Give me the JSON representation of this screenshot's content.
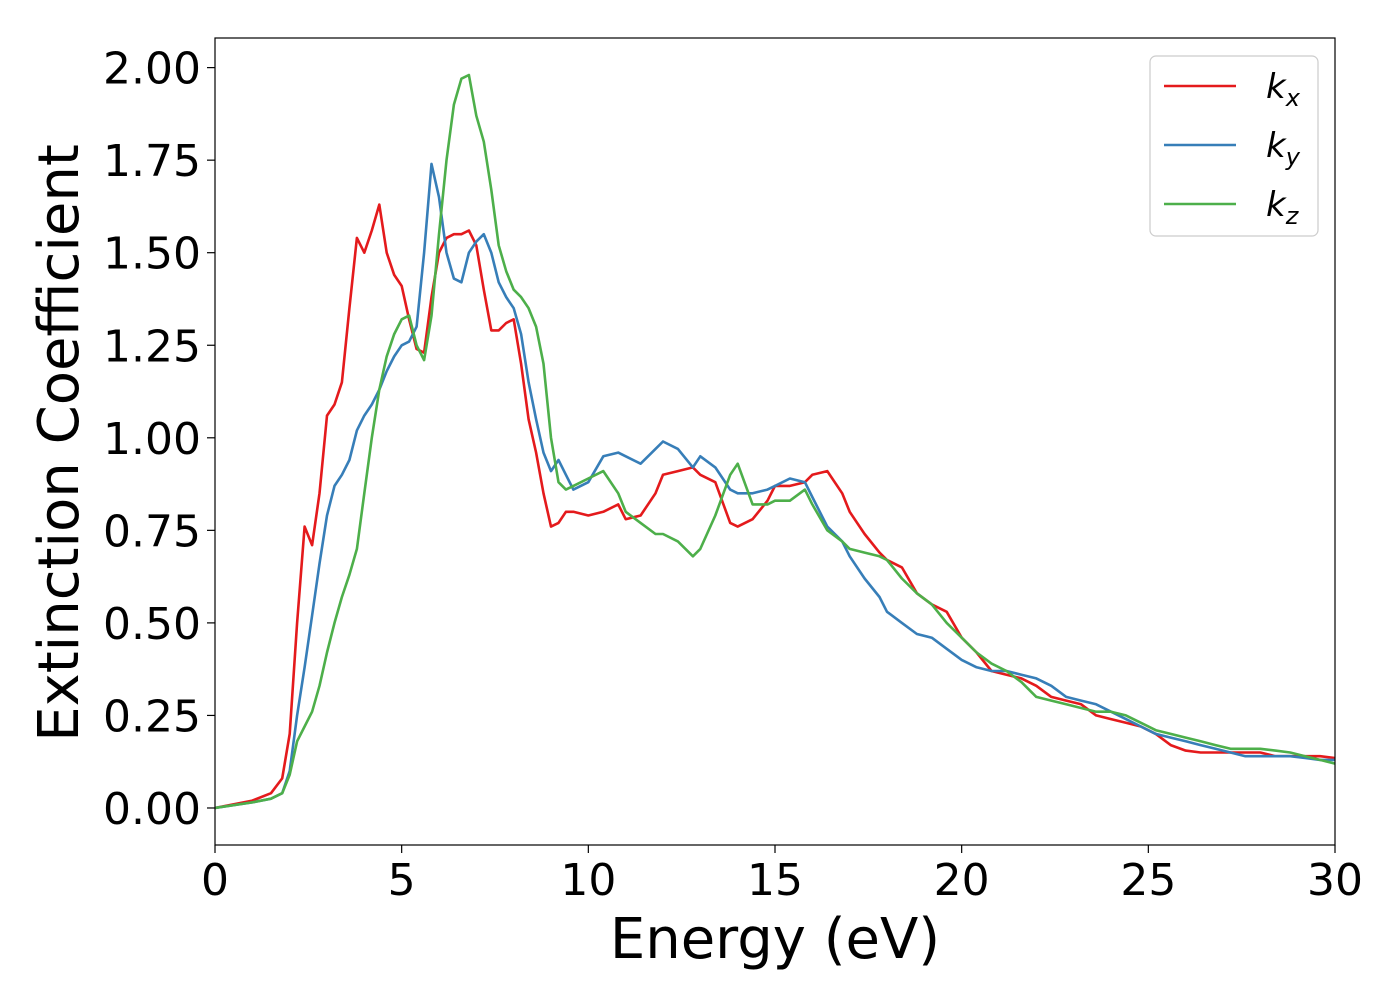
{
  "chart_data": {
    "type": "line",
    "title": "",
    "xlabel": "Energy (eV)",
    "ylabel": "Extinction Coefficient",
    "xlim": [
      0,
      30
    ],
    "ylim": [
      -0.1,
      2.08
    ],
    "xticks": [
      0,
      5,
      10,
      15,
      20,
      25,
      30
    ],
    "xtick_labels": [
      "0",
      "5",
      "10",
      "15",
      "20",
      "25",
      "30"
    ],
    "yticks": [
      0,
      0.25,
      0.5,
      0.75,
      1.0,
      1.25,
      1.5,
      1.75,
      2.0
    ],
    "ytick_labels": [
      "0.00",
      "0.25",
      "0.50",
      "0.75",
      "1.00",
      "1.25",
      "1.50",
      "1.75",
      "2.00"
    ],
    "grid": false,
    "legend_position": "top-right",
    "series": [
      {
        "name": "kx",
        "label_base": "k",
        "label_sub": "x",
        "color": "#e41a1c",
        "x": [
          0,
          1,
          1.5,
          1.8,
          2.0,
          2.2,
          2.4,
          2.6,
          2.8,
          3.0,
          3.2,
          3.4,
          3.6,
          3.8,
          4.0,
          4.2,
          4.4,
          4.6,
          4.8,
          5.0,
          5.2,
          5.4,
          5.6,
          5.8,
          6.0,
          6.2,
          6.4,
          6.6,
          6.8,
          7.0,
          7.2,
          7.4,
          7.6,
          7.8,
          8.0,
          8.2,
          8.4,
          8.6,
          8.8,
          9.0,
          9.2,
          9.4,
          9.6,
          10.0,
          10.4,
          10.8,
          11.0,
          11.4,
          11.8,
          12.0,
          12.4,
          12.8,
          13.0,
          13.4,
          13.8,
          14.0,
          14.4,
          14.8,
          15.0,
          15.4,
          15.8,
          16.0,
          16.4,
          16.8,
          17.0,
          17.4,
          17.8,
          18.0,
          18.4,
          18.8,
          19.2,
          19.6,
          20.0,
          20.4,
          20.8,
          21.2,
          21.6,
          22.0,
          22.4,
          22.8,
          23.2,
          23.6,
          24.0,
          24.4,
          24.8,
          25.2,
          25.6,
          26.0,
          26.4,
          26.8,
          27.2,
          27.6,
          28.0,
          28.4,
          28.8,
          29.2,
          29.6,
          30.0
        ],
        "y": [
          0,
          0.02,
          0.04,
          0.08,
          0.2,
          0.5,
          0.76,
          0.71,
          0.85,
          1.06,
          1.09,
          1.15,
          1.35,
          1.54,
          1.5,
          1.56,
          1.63,
          1.5,
          1.44,
          1.41,
          1.32,
          1.24,
          1.23,
          1.38,
          1.5,
          1.54,
          1.55,
          1.55,
          1.56,
          1.52,
          1.4,
          1.29,
          1.29,
          1.31,
          1.32,
          1.2,
          1.05,
          0.96,
          0.85,
          0.76,
          0.77,
          0.8,
          0.8,
          0.79,
          0.8,
          0.82,
          0.78,
          0.79,
          0.85,
          0.9,
          0.91,
          0.92,
          0.9,
          0.88,
          0.77,
          0.76,
          0.78,
          0.83,
          0.87,
          0.87,
          0.88,
          0.9,
          0.91,
          0.85,
          0.8,
          0.74,
          0.69,
          0.67,
          0.65,
          0.58,
          0.55,
          0.53,
          0.46,
          0.42,
          0.37,
          0.36,
          0.35,
          0.33,
          0.3,
          0.29,
          0.28,
          0.25,
          0.24,
          0.23,
          0.22,
          0.2,
          0.17,
          0.155,
          0.15,
          0.15,
          0.15,
          0.15,
          0.15,
          0.14,
          0.14,
          0.14,
          0.14,
          0.135
        ]
      },
      {
        "name": "ky",
        "label_base": "k",
        "label_sub": "y",
        "color": "#377eb8",
        "x": [
          0,
          1,
          1.5,
          1.8,
          2.0,
          2.2,
          2.4,
          2.6,
          2.8,
          3.0,
          3.2,
          3.4,
          3.6,
          3.8,
          4.0,
          4.2,
          4.4,
          4.6,
          4.8,
          5.0,
          5.2,
          5.4,
          5.6,
          5.8,
          6.0,
          6.2,
          6.4,
          6.6,
          6.8,
          7.0,
          7.2,
          7.4,
          7.6,
          7.8,
          8.0,
          8.2,
          8.4,
          8.6,
          8.8,
          9.0,
          9.2,
          9.4,
          9.6,
          10.0,
          10.4,
          10.8,
          11.0,
          11.4,
          11.8,
          12.0,
          12.4,
          12.8,
          13.0,
          13.4,
          13.8,
          14.0,
          14.4,
          14.8,
          15.0,
          15.4,
          15.8,
          16.0,
          16.4,
          16.8,
          17.0,
          17.4,
          17.8,
          18.0,
          18.4,
          18.8,
          19.2,
          19.6,
          20.0,
          20.4,
          20.8,
          21.2,
          21.6,
          22.0,
          22.4,
          22.8,
          23.2,
          23.6,
          24.0,
          24.4,
          24.8,
          25.2,
          25.6,
          26.0,
          26.4,
          26.8,
          27.2,
          27.6,
          28.0,
          28.4,
          28.8,
          29.2,
          29.6,
          30.0
        ],
        "y": [
          0,
          0.015,
          0.025,
          0.04,
          0.1,
          0.25,
          0.38,
          0.52,
          0.66,
          0.79,
          0.87,
          0.9,
          0.94,
          1.02,
          1.06,
          1.09,
          1.13,
          1.18,
          1.22,
          1.25,
          1.26,
          1.3,
          1.5,
          1.74,
          1.65,
          1.5,
          1.43,
          1.42,
          1.5,
          1.53,
          1.55,
          1.5,
          1.42,
          1.38,
          1.35,
          1.28,
          1.15,
          1.05,
          0.96,
          0.91,
          0.94,
          0.9,
          0.86,
          0.88,
          0.95,
          0.96,
          0.95,
          0.93,
          0.97,
          0.99,
          0.97,
          0.92,
          0.95,
          0.92,
          0.86,
          0.85,
          0.85,
          0.86,
          0.87,
          0.89,
          0.88,
          0.84,
          0.76,
          0.72,
          0.68,
          0.62,
          0.57,
          0.53,
          0.5,
          0.47,
          0.46,
          0.43,
          0.4,
          0.38,
          0.37,
          0.37,
          0.36,
          0.35,
          0.33,
          0.3,
          0.29,
          0.28,
          0.26,
          0.24,
          0.22,
          0.2,
          0.19,
          0.18,
          0.17,
          0.16,
          0.15,
          0.14,
          0.14,
          0.14,
          0.14,
          0.135,
          0.13,
          0.13
        ]
      },
      {
        "name": "kz",
        "label_base": "k",
        "label_sub": "z",
        "color": "#4daf4a",
        "x": [
          0,
          1,
          1.5,
          1.8,
          2.0,
          2.2,
          2.4,
          2.6,
          2.8,
          3.0,
          3.2,
          3.4,
          3.6,
          3.8,
          4.0,
          4.2,
          4.4,
          4.6,
          4.8,
          5.0,
          5.2,
          5.4,
          5.6,
          5.8,
          6.0,
          6.2,
          6.4,
          6.6,
          6.8,
          7.0,
          7.2,
          7.4,
          7.6,
          7.8,
          8.0,
          8.2,
          8.4,
          8.6,
          8.8,
          9.0,
          9.2,
          9.4,
          9.6,
          10.0,
          10.4,
          10.8,
          11.0,
          11.4,
          11.8,
          12.0,
          12.4,
          12.8,
          13.0,
          13.4,
          13.8,
          14.0,
          14.4,
          14.8,
          15.0,
          15.4,
          15.8,
          16.0,
          16.4,
          16.8,
          17.0,
          17.4,
          17.8,
          18.0,
          18.4,
          18.8,
          19.2,
          19.6,
          20.0,
          20.4,
          20.8,
          21.2,
          21.6,
          22.0,
          22.4,
          22.8,
          23.2,
          23.6,
          24.0,
          24.4,
          24.8,
          25.2,
          25.6,
          26.0,
          26.4,
          26.8,
          27.2,
          27.6,
          28.0,
          28.4,
          28.8,
          29.2,
          29.6,
          30.0
        ],
        "y": [
          0,
          0.015,
          0.025,
          0.04,
          0.09,
          0.18,
          0.22,
          0.26,
          0.33,
          0.42,
          0.5,
          0.57,
          0.63,
          0.7,
          0.85,
          1.0,
          1.13,
          1.22,
          1.28,
          1.32,
          1.33,
          1.25,
          1.21,
          1.33,
          1.55,
          1.75,
          1.9,
          1.97,
          1.98,
          1.87,
          1.8,
          1.67,
          1.52,
          1.45,
          1.4,
          1.38,
          1.35,
          1.3,
          1.2,
          1.0,
          0.88,
          0.86,
          0.87,
          0.89,
          0.91,
          0.85,
          0.8,
          0.77,
          0.74,
          0.74,
          0.72,
          0.68,
          0.7,
          0.79,
          0.9,
          0.93,
          0.82,
          0.82,
          0.83,
          0.83,
          0.86,
          0.82,
          0.75,
          0.72,
          0.7,
          0.69,
          0.68,
          0.67,
          0.62,
          0.58,
          0.55,
          0.5,
          0.46,
          0.42,
          0.39,
          0.37,
          0.34,
          0.3,
          0.29,
          0.28,
          0.27,
          0.26,
          0.26,
          0.25,
          0.23,
          0.21,
          0.2,
          0.19,
          0.18,
          0.17,
          0.16,
          0.16,
          0.16,
          0.155,
          0.15,
          0.14,
          0.13,
          0.12
        ]
      }
    ]
  }
}
